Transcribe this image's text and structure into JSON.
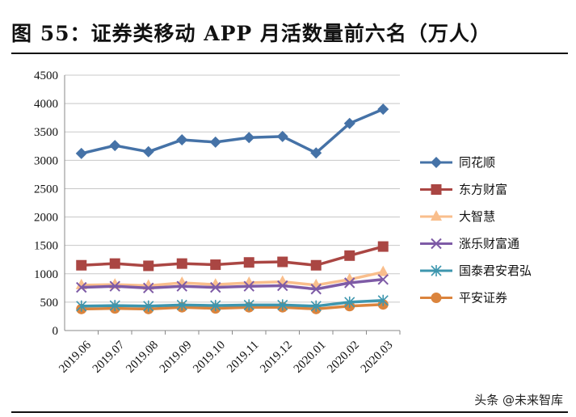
{
  "title": "图 55：证券类移动 APP 月活数量前六名（万人）",
  "watermark": "头条 @未来智库",
  "chart_data": {
    "type": "line",
    "title": "图 55：证券类移动 APP 月活数量前六名（万人）",
    "categories": [
      "2019.06",
      "2019.07",
      "2019.08",
      "2019.09",
      "2019.10",
      "2019.11",
      "2019.12",
      "2020.01",
      "2020.02",
      "2020.03"
    ],
    "ylim": [
      0,
      4500
    ],
    "yticks": [
      0,
      500,
      1000,
      1500,
      2000,
      2500,
      3000,
      3500,
      4000,
      4500
    ],
    "grid": true,
    "legend": "right",
    "series": [
      {
        "name": "同花顺",
        "marker": "diamond",
        "color": "#4572A7",
        "values": [
          3120,
          3260,
          3150,
          3360,
          3320,
          3400,
          3420,
          3130,
          3650,
          3900
        ]
      },
      {
        "name": "东方财富",
        "marker": "square",
        "color": "#AA4643",
        "values": [
          1150,
          1180,
          1140,
          1180,
          1160,
          1200,
          1210,
          1150,
          1320,
          1480
        ]
      },
      {
        "name": "大智慧",
        "marker": "triangle",
        "color": "#F9BE8C",
        "values": [
          800,
          810,
          790,
          840,
          810,
          840,
          860,
          800,
          900,
          1030
        ]
      },
      {
        "name": "涨乐财富通",
        "marker": "x",
        "color": "#7E5BA6",
        "values": [
          760,
          780,
          750,
          780,
          760,
          780,
          790,
          730,
          840,
          900
        ]
      },
      {
        "name": "国泰君安君弘",
        "marker": "star",
        "color": "#3D96AE",
        "values": [
          430,
          440,
          430,
          450,
          440,
          450,
          450,
          430,
          500,
          530
        ]
      },
      {
        "name": "平安证券",
        "marker": "circle",
        "color": "#DB843D",
        "values": [
          380,
          390,
          380,
          410,
          390,
          410,
          410,
          380,
          430,
          460
        ]
      }
    ]
  }
}
